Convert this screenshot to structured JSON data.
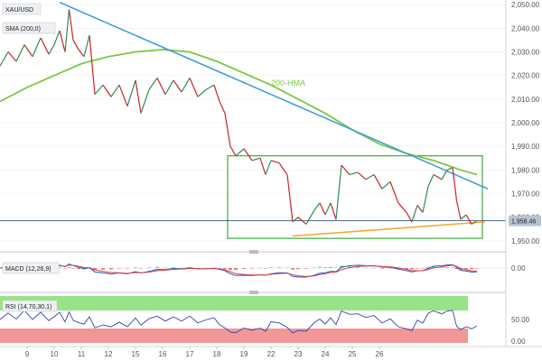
{
  "chart_data": {
    "type": "line",
    "instrument": "XAU/USD",
    "price_panel": {
      "label": "XAU/USD",
      "indicator_label": "SMA (200,0)",
      "y_ticks": [
        "2,050.00",
        "2,040.00",
        "2,030.00",
        "2,020.00",
        "2,010.00",
        "2,000.00",
        "1,990.00",
        "1,980.00",
        "1,970.00",
        "1,960.00",
        "1,950.00"
      ],
      "ylim": [
        1948,
        2052
      ],
      "last_price_label": "1,958.46",
      "last_price": 1958.46,
      "annotation": "200-HMA",
      "price_series": [
        {
          "x": 8.0,
          "y": 2024
        },
        {
          "x": 8.3,
          "y": 2030
        },
        {
          "x": 8.6,
          "y": 2026
        },
        {
          "x": 8.9,
          "y": 2033
        },
        {
          "x": 9.2,
          "y": 2028
        },
        {
          "x": 9.5,
          "y": 2036
        },
        {
          "x": 9.8,
          "y": 2029
        },
        {
          "x": 10.0,
          "y": 2033
        },
        {
          "x": 10.2,
          "y": 2039
        },
        {
          "x": 10.4,
          "y": 2030
        },
        {
          "x": 10.55,
          "y": 2048
        },
        {
          "x": 10.7,
          "y": 2035
        },
        {
          "x": 10.9,
          "y": 2031
        },
        {
          "x": 11.1,
          "y": 2028
        },
        {
          "x": 11.3,
          "y": 2037
        },
        {
          "x": 11.5,
          "y": 2012
        },
        {
          "x": 11.8,
          "y": 2016
        },
        {
          "x": 12.1,
          "y": 2011
        },
        {
          "x": 12.4,
          "y": 2016
        },
        {
          "x": 12.7,
          "y": 2007
        },
        {
          "x": 13.0,
          "y": 2018
        },
        {
          "x": 13.2,
          "y": 2004
        },
        {
          "x": 13.5,
          "y": 2014
        },
        {
          "x": 13.8,
          "y": 2019
        },
        {
          "x": 14.1,
          "y": 2012
        },
        {
          "x": 14.4,
          "y": 2018
        },
        {
          "x": 14.7,
          "y": 2013
        },
        {
          "x": 15.0,
          "y": 2019
        },
        {
          "x": 15.3,
          "y": 2011
        },
        {
          "x": 15.6,
          "y": 2014
        },
        {
          "x": 15.9,
          "y": 2016
        },
        {
          "x": 16.1,
          "y": 2009
        },
        {
          "x": 16.3,
          "y": 2004
        },
        {
          "x": 16.5,
          "y": 1990
        },
        {
          "x": 16.7,
          "y": 1986
        },
        {
          "x": 17.0,
          "y": 1989
        },
        {
          "x": 17.3,
          "y": 1984
        },
        {
          "x": 17.6,
          "y": 1985
        },
        {
          "x": 17.8,
          "y": 1978
        },
        {
          "x": 18.0,
          "y": 1984
        },
        {
          "x": 18.3,
          "y": 1983
        },
        {
          "x": 18.6,
          "y": 1978
        },
        {
          "x": 18.8,
          "y": 1958
        },
        {
          "x": 19.0,
          "y": 1960
        },
        {
          "x": 19.3,
          "y": 1957
        },
        {
          "x": 19.6,
          "y": 1963
        },
        {
          "x": 19.8,
          "y": 1966
        },
        {
          "x": 20.0,
          "y": 1961
        },
        {
          "x": 20.2,
          "y": 1966
        },
        {
          "x": 20.4,
          "y": 1959
        },
        {
          "x": 20.6,
          "y": 1982
        },
        {
          "x": 20.9,
          "y": 1978
        },
        {
          "x": 21.2,
          "y": 1979
        },
        {
          "x": 21.5,
          "y": 1976
        },
        {
          "x": 21.8,
          "y": 1978
        },
        {
          "x": 22.1,
          "y": 1972
        },
        {
          "x": 22.4,
          "y": 1975
        },
        {
          "x": 22.7,
          "y": 1966
        },
        {
          "x": 23.0,
          "y": 1962
        },
        {
          "x": 23.2,
          "y": 1958
        },
        {
          "x": 23.4,
          "y": 1965
        },
        {
          "x": 23.6,
          "y": 1962
        },
        {
          "x": 23.8,
          "y": 1973
        },
        {
          "x": 24.0,
          "y": 1978
        },
        {
          "x": 24.3,
          "y": 1976
        },
        {
          "x": 24.5,
          "y": 1980
        },
        {
          "x": 24.7,
          "y": 1981
        },
        {
          "x": 24.85,
          "y": 1967
        },
        {
          "x": 25.0,
          "y": 1959
        },
        {
          "x": 25.2,
          "y": 1961
        },
        {
          "x": 25.4,
          "y": 1957
        },
        {
          "x": 25.6,
          "y": 1958.46
        }
      ],
      "sma_200_series": [
        {
          "x": 8.0,
          "y": 2009
        },
        {
          "x": 9.0,
          "y": 2015
        },
        {
          "x": 10.0,
          "y": 2020
        },
        {
          "x": 11.0,
          "y": 2025
        },
        {
          "x": 12.0,
          "y": 2028
        },
        {
          "x": 13.0,
          "y": 2030
        },
        {
          "x": 14.0,
          "y": 2031
        },
        {
          "x": 15.0,
          "y": 2030
        },
        {
          "x": 16.0,
          "y": 2026
        },
        {
          "x": 17.0,
          "y": 2021
        },
        {
          "x": 18.0,
          "y": 2016
        },
        {
          "x": 19.0,
          "y": 2010
        },
        {
          "x": 20.0,
          "y": 2004
        },
        {
          "x": 21.0,
          "y": 1997
        },
        {
          "x": 22.0,
          "y": 1991
        },
        {
          "x": 23.0,
          "y": 1987
        },
        {
          "x": 24.0,
          "y": 1984
        },
        {
          "x": 25.0,
          "y": 1980
        },
        {
          "x": 25.6,
          "y": 1978
        }
      ],
      "trendline_down": [
        {
          "x": 10.2,
          "y": 2051
        },
        {
          "x": 26.0,
          "y": 1972
        }
      ],
      "trendline_support": [
        {
          "x": 18.8,
          "y": 1952
        },
        {
          "x": 25.9,
          "y": 1958
        }
      ],
      "range_box": {
        "x": [
          16.4,
          25.8
        ],
        "y": [
          1951,
          1986
        ]
      }
    },
    "macd_panel": {
      "label": "MACD (12,26,9)",
      "y_tick": "0.00"
    },
    "rsi_panel": {
      "label": "RSI (14,70,30,1)",
      "y_ticks": [
        "50.00",
        "0.00"
      ]
    },
    "x_tick_labels": [
      "9",
      "10",
      "11",
      "12",
      "15",
      "16",
      "17",
      "18",
      "19",
      "22",
      "23",
      "24",
      "25",
      "26"
    ],
    "x_tick_values": [
      9,
      10,
      11,
      12,
      13,
      14,
      15,
      16,
      17,
      18,
      19,
      20,
      21,
      22
    ],
    "colors": {
      "up": "#2e8b57",
      "down": "#cc2222",
      "sma": "#7ac943",
      "trend_down": "#3a9ad9",
      "trend_support": "#f5a623",
      "range_box": "#4caf50",
      "last_price_tag": "#b7c3d3"
    }
  }
}
